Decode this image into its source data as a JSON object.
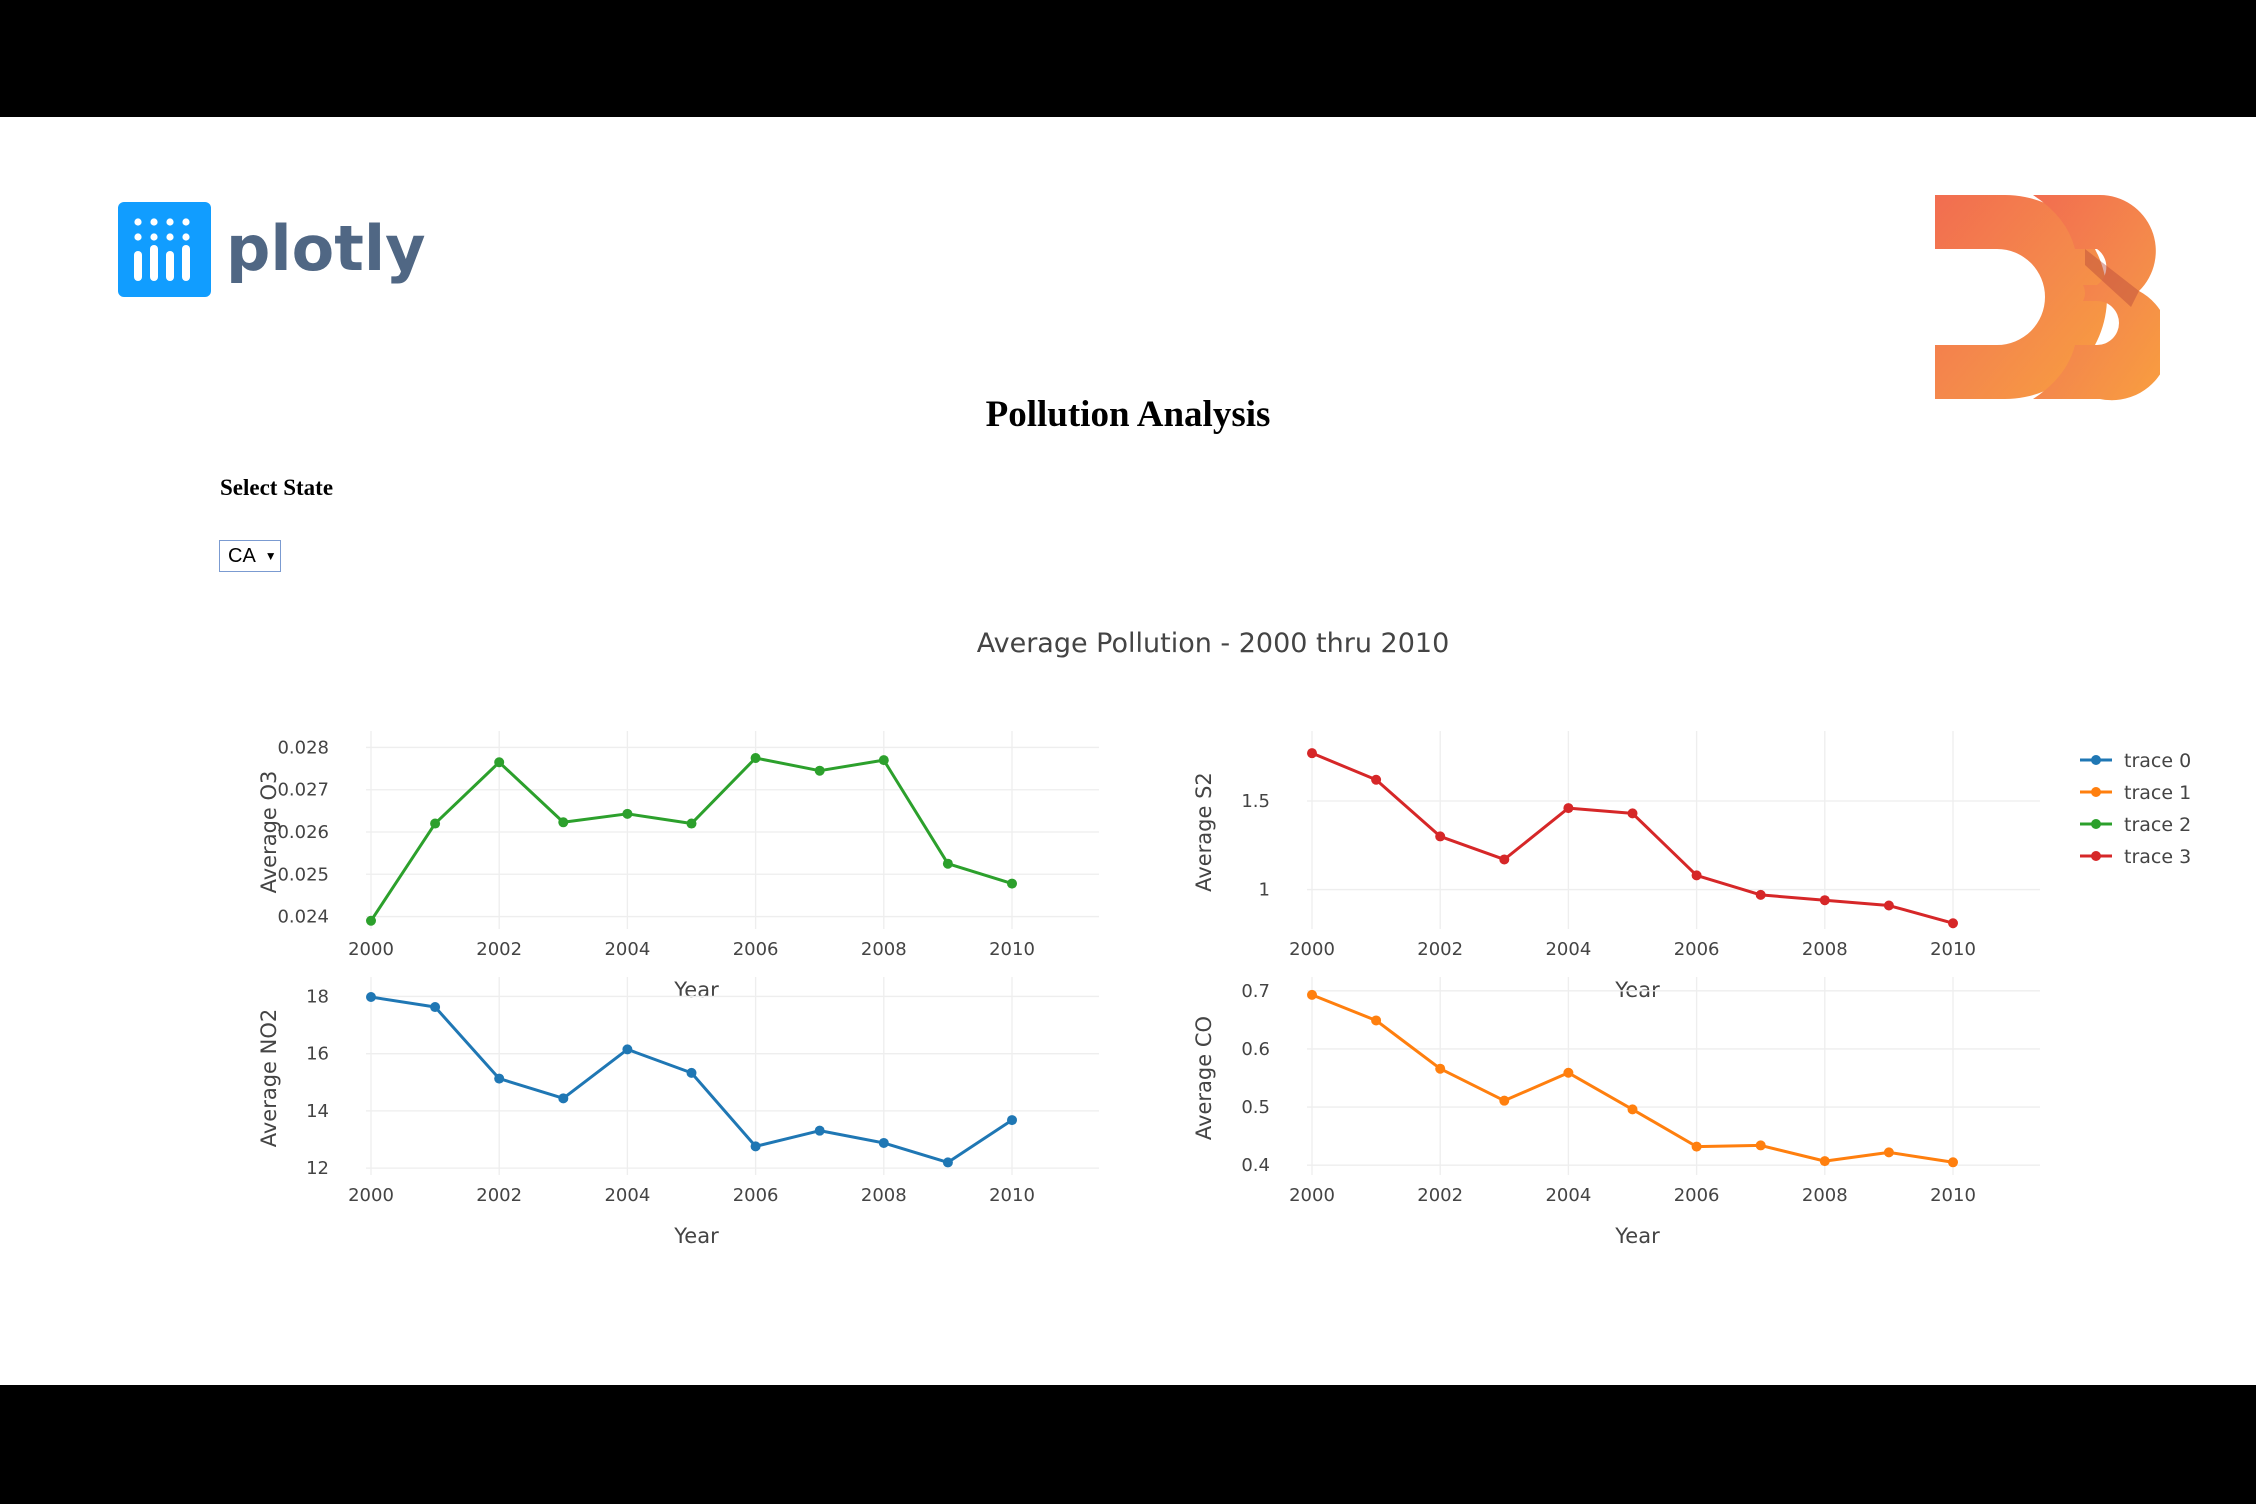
{
  "header": {
    "plotly_logo_text": "plotly",
    "d3_logo_text": "D3",
    "title": "Pollution Analysis"
  },
  "filter": {
    "label": "Select State",
    "selected": "CA"
  },
  "colors": {
    "trace0": "#1f77b4",
    "trace1": "#ff7f0e",
    "trace2": "#2ca02c",
    "trace3": "#d62728",
    "plotly_blue": "#119dff",
    "plotly_text": "#506784"
  },
  "chart_data": {
    "type": "line",
    "title": "Average Pollution - 2000 thru 2010",
    "x": [
      2000,
      2001,
      2002,
      2003,
      2004,
      2005,
      2006,
      2007,
      2008,
      2009,
      2010
    ],
    "xticks": [
      "2000",
      "2002",
      "2004",
      "2006",
      "2008",
      "2010"
    ],
    "legend": [
      "trace 0",
      "trace 1",
      "trace 2",
      "trace 3"
    ],
    "legend_position": "top-right",
    "grid": true,
    "subplots": [
      {
        "position": "top-left",
        "trace": "trace 2",
        "color": "#2ca02c",
        "xlabel": "Year",
        "ylabel": "Average O3",
        "ylim": [
          0.0238,
          0.0282
        ],
        "yticks": [
          0.024,
          0.025,
          0.026,
          0.027,
          0.028
        ],
        "ytick_labels": [
          "0.024",
          "0.025",
          "0.026",
          "0.027",
          "0.028"
        ],
        "values": [
          0.0239,
          0.0262,
          0.02765,
          0.02623,
          0.02643,
          0.0262,
          0.02775,
          0.02745,
          0.0277,
          0.02525,
          0.02478
        ]
      },
      {
        "position": "top-right",
        "trace": "trace 3",
        "color": "#d62728",
        "xlabel": "Year",
        "ylabel": "Average S2",
        "ylim": [
          0.8,
          1.85
        ],
        "yticks": [
          1,
          1.5
        ],
        "ytick_labels": [
          "1",
          "1.5"
        ],
        "values": [
          1.77,
          1.62,
          1.3,
          1.17,
          1.46,
          1.43,
          1.08,
          0.97,
          0.94,
          0.91,
          0.81
        ]
      },
      {
        "position": "bottom-left",
        "trace": "trace 0",
        "color": "#1f77b4",
        "xlabel": "Year",
        "ylabel": "Average NO2",
        "ylim": [
          11.9,
          18.4
        ],
        "yticks": [
          12,
          14,
          16,
          18
        ],
        "ytick_labels": [
          "12",
          "14",
          "16",
          "18"
        ],
        "values": [
          17.98,
          17.63,
          15.13,
          14.44,
          16.15,
          15.33,
          12.76,
          13.31,
          12.88,
          12.2,
          13.68
        ]
      },
      {
        "position": "bottom-right",
        "trace": "trace 1",
        "color": "#ff7f0e",
        "xlabel": "Year",
        "ylabel": "Average CO",
        "ylim": [
          0.39,
          0.71
        ],
        "yticks": [
          0.4,
          0.5,
          0.6,
          0.7
        ],
        "ytick_labels": [
          "0.4",
          "0.5",
          "0.6",
          "0.7"
        ],
        "values": [
          0.693,
          0.649,
          0.566,
          0.511,
          0.559,
          0.496,
          0.432,
          0.434,
          0.407,
          0.422,
          0.405
        ]
      }
    ]
  }
}
